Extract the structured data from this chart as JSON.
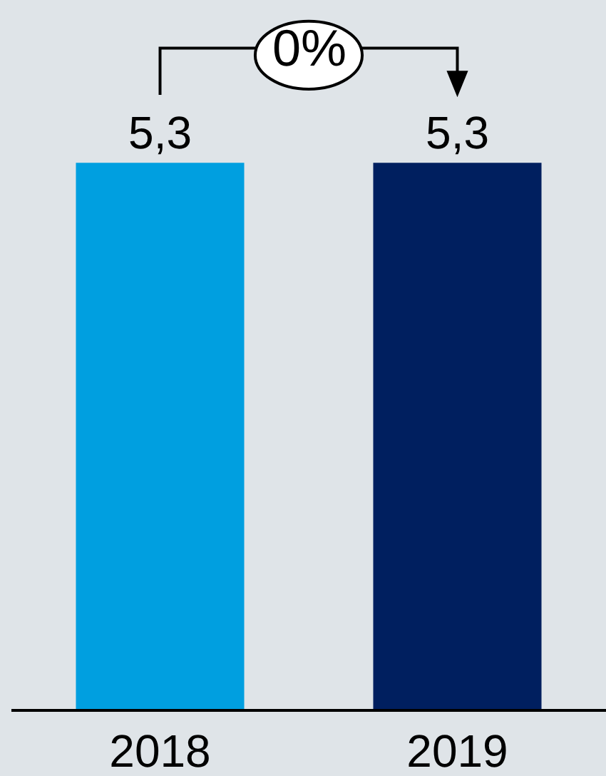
{
  "chart_data": {
    "type": "bar",
    "categories": [
      "2018",
      "2019"
    ],
    "values": [
      5.3,
      5.3
    ],
    "colors": [
      "#009fe0",
      "#001f5f"
    ],
    "value_labels": [
      "5,3",
      "5,3"
    ],
    "annotations": [
      "0%"
    ],
    "tick_labels": "x"
  }
}
